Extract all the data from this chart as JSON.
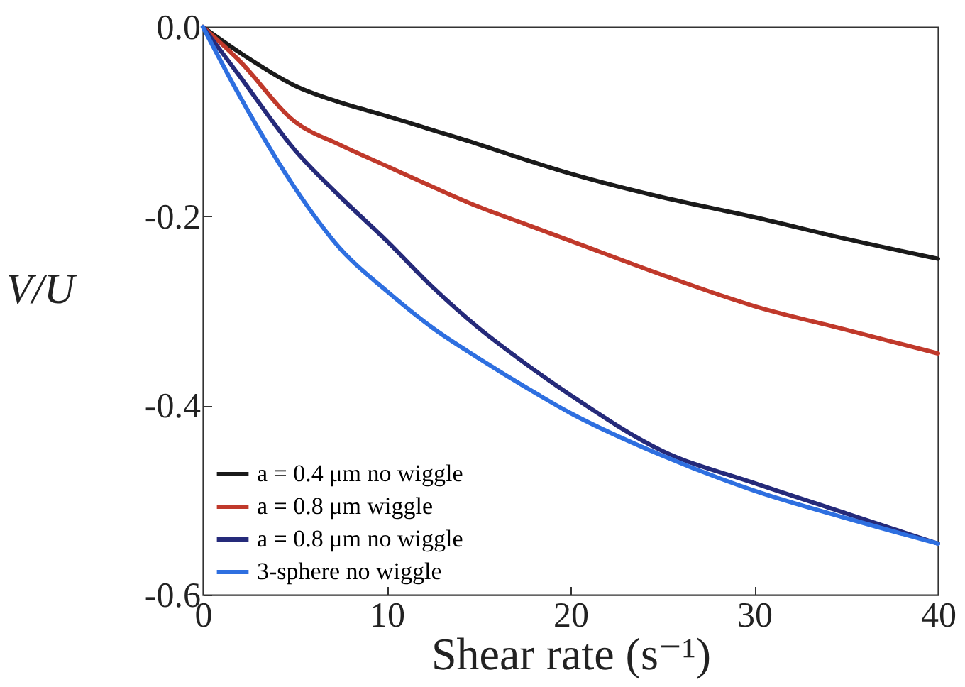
{
  "chart_data": {
    "type": "line",
    "xlabel": "Shear rate (s⁻¹)",
    "ylabel": "V/U",
    "xlim": [
      0,
      40
    ],
    "ylim": [
      -0.6,
      0
    ],
    "xticks": [
      0,
      10,
      20,
      30,
      40
    ],
    "yticks": [
      {
        "value": 0,
        "label": "0.0"
      },
      {
        "value": -0.2,
        "label": "-0.2"
      },
      {
        "value": -0.4,
        "label": "-0.4"
      },
      {
        "value": -0.6,
        "label": "-0.6"
      }
    ],
    "grid": false,
    "legend": "bottom left",
    "line_style": "solid",
    "x": [
      0,
      2,
      5,
      7.5,
      10,
      12.5,
      15,
      17.5,
      20,
      25,
      30,
      35,
      40
    ],
    "series": [
      {
        "name": "a = 0.4 μm no wiggle",
        "color": "#1a1a1a",
        "values": [
          0,
          -0.027,
          -0.062,
          -0.08,
          -0.094,
          -0.109,
          -0.124,
          -0.14,
          -0.155,
          -0.18,
          -0.201,
          -0.224,
          -0.245
        ]
      },
      {
        "name": "a = 0.8 μm wiggle",
        "color": "#c0392b",
        "values": [
          0,
          -0.036,
          -0.1,
          -0.125,
          -0.147,
          -0.169,
          -0.19,
          -0.208,
          -0.226,
          -0.262,
          -0.295,
          -0.32,
          -0.345
        ]
      },
      {
        "name": "a = 0.8 μm no wiggle",
        "color": "#252a7a",
        "values": [
          0,
          -0.052,
          -0.13,
          -0.18,
          -0.226,
          -0.275,
          -0.318,
          -0.355,
          -0.389,
          -0.448,
          -0.482,
          -0.514,
          -0.546
        ]
      },
      {
        "name": "3-sphere no wiggle",
        "color": "#2e6fe0",
        "values": [
          0,
          -0.073,
          -0.17,
          -0.235,
          -0.279,
          -0.318,
          -0.35,
          -0.38,
          -0.408,
          -0.453,
          -0.49,
          -0.519,
          -0.546
        ]
      }
    ]
  }
}
